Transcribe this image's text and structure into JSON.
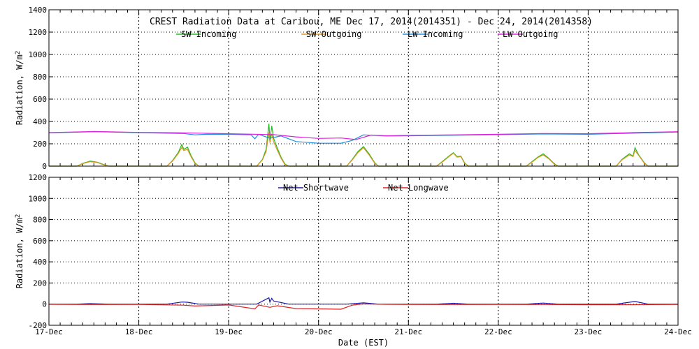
{
  "chart_data": [
    {
      "type": "line",
      "title": "CREST Radiation Data at Caribou, ME   Dec 17, 2014(2014351) - Dec 24, 2014(2014358)",
      "xlabel": "",
      "ylabel": "Radiation, W/m^2",
      "x_range": [
        "2014-12-17",
        "2014-12-24"
      ],
      "ylim": [
        0,
        1400
      ],
      "y_ticks": [
        0,
        200,
        400,
        600,
        800,
        1000,
        1200,
        1400
      ],
      "grid": true,
      "legend_position": "top-center",
      "series": [
        {
          "name": "SW Incoming",
          "color": "#22bb22",
          "points": [
            [
              "2014-12-17 00:00",
              0
            ],
            [
              "2014-12-17 07:30",
              0
            ],
            [
              "2014-12-17 09:00",
              25
            ],
            [
              "2014-12-17 11:00",
              45
            ],
            [
              "2014-12-17 13:00",
              35
            ],
            [
              "2014-12-17 14:30",
              15
            ],
            [
              "2014-12-17 16:00",
              0
            ],
            [
              "2014-12-18 07:30",
              0
            ],
            [
              "2014-12-18 09:00",
              50
            ],
            [
              "2014-12-18 10:30",
              120
            ],
            [
              "2014-12-18 11:30",
              195
            ],
            [
              "2014-12-18 12:00",
              150
            ],
            [
              "2014-12-18 13:00",
              170
            ],
            [
              "2014-12-18 14:00",
              90
            ],
            [
              "2014-12-18 15:00",
              30
            ],
            [
              "2014-12-18 16:00",
              0
            ],
            [
              "2014-12-19 07:30",
              0
            ],
            [
              "2014-12-19 09:00",
              60
            ],
            [
              "2014-12-19 10:00",
              150
            ],
            [
              "2014-12-19 10:45",
              380
            ],
            [
              "2014-12-19 11:00",
              230
            ],
            [
              "2014-12-19 11:30",
              360
            ],
            [
              "2014-12-19 12:00",
              250
            ],
            [
              "2014-12-19 13:00",
              160
            ],
            [
              "2014-12-19 14:00",
              80
            ],
            [
              "2014-12-19 15:00",
              20
            ],
            [
              "2014-12-19 16:00",
              0
            ],
            [
              "2014-12-20 07:30",
              0
            ],
            [
              "2014-12-20 09:00",
              60
            ],
            [
              "2014-12-20 10:30",
              130
            ],
            [
              "2014-12-20 12:00",
              175
            ],
            [
              "2014-12-20 13:30",
              110
            ],
            [
              "2014-12-20 15:00",
              30
            ],
            [
              "2014-12-20 16:00",
              0
            ],
            [
              "2014-12-21 07:30",
              0
            ],
            [
              "2014-12-21 09:00",
              40
            ],
            [
              "2014-12-21 11:00",
              95
            ],
            [
              "2014-12-21 12:00",
              120
            ],
            [
              "2014-12-21 13:00",
              85
            ],
            [
              "2014-12-21 14:00",
              90
            ],
            [
              "2014-12-21 15:00",
              30
            ],
            [
              "2014-12-21 16:00",
              0
            ],
            [
              "2014-12-22 07:30",
              0
            ],
            [
              "2014-12-22 09:00",
              40
            ],
            [
              "2014-12-22 10:30",
              80
            ],
            [
              "2014-12-22 12:00",
              110
            ],
            [
              "2014-12-22 13:30",
              70
            ],
            [
              "2014-12-22 15:00",
              20
            ],
            [
              "2014-12-22 16:00",
              0
            ],
            [
              "2014-12-23 07:30",
              0
            ],
            [
              "2014-12-23 09:00",
              60
            ],
            [
              "2014-12-23 11:00",
              110
            ],
            [
              "2014-12-23 12:00",
              90
            ],
            [
              "2014-12-23 12:30",
              165
            ],
            [
              "2014-12-23 13:30",
              100
            ],
            [
              "2014-12-23 15:00",
              30
            ],
            [
              "2014-12-23 16:00",
              0
            ],
            [
              "2014-12-24 00:00",
              0
            ]
          ]
        },
        {
          "name": "SW Outgoing",
          "color": "#dd9922",
          "points": [
            [
              "2014-12-17 00:00",
              0
            ],
            [
              "2014-12-17 07:30",
              0
            ],
            [
              "2014-12-17 09:00",
              22
            ],
            [
              "2014-12-17 11:00",
              40
            ],
            [
              "2014-12-17 13:00",
              32
            ],
            [
              "2014-12-17 14:30",
              12
            ],
            [
              "2014-12-17 16:00",
              0
            ],
            [
              "2014-12-18 07:30",
              0
            ],
            [
              "2014-12-18 09:00",
              45
            ],
            [
              "2014-12-18 10:30",
              110
            ],
            [
              "2014-12-18 11:30",
              170
            ],
            [
              "2014-12-18 12:00",
              140
            ],
            [
              "2014-12-18 13:00",
              150
            ],
            [
              "2014-12-18 14:00",
              80
            ],
            [
              "2014-12-18 15:00",
              25
            ],
            [
              "2014-12-18 16:00",
              0
            ],
            [
              "2014-12-19 07:30",
              0
            ],
            [
              "2014-12-19 09:00",
              55
            ],
            [
              "2014-12-19 10:00",
              130
            ],
            [
              "2014-12-19 10:45",
              300
            ],
            [
              "2014-12-19 11:00",
              210
            ],
            [
              "2014-12-19 11:30",
              290
            ],
            [
              "2014-12-19 12:00",
              220
            ],
            [
              "2014-12-19 13:00",
              140
            ],
            [
              "2014-12-19 14:00",
              70
            ],
            [
              "2014-12-19 15:00",
              15
            ],
            [
              "2014-12-19 16:00",
              0
            ],
            [
              "2014-12-20 07:30",
              0
            ],
            [
              "2014-12-20 09:00",
              55
            ],
            [
              "2014-12-20 10:30",
              120
            ],
            [
              "2014-12-20 12:00",
              165
            ],
            [
              "2014-12-20 13:30",
              100
            ],
            [
              "2014-12-20 15:00",
              25
            ],
            [
              "2014-12-20 16:00",
              0
            ],
            [
              "2014-12-21 07:30",
              0
            ],
            [
              "2014-12-21 09:00",
              35
            ],
            [
              "2014-12-21 11:00",
              90
            ],
            [
              "2014-12-21 12:00",
              115
            ],
            [
              "2014-12-21 13:00",
              80
            ],
            [
              "2014-12-21 14:00",
              85
            ],
            [
              "2014-12-21 15:00",
              25
            ],
            [
              "2014-12-21 16:00",
              0
            ],
            [
              "2014-12-22 07:30",
              0
            ],
            [
              "2014-12-22 09:00",
              35
            ],
            [
              "2014-12-22 10:30",
              75
            ],
            [
              "2014-12-22 12:00",
              100
            ],
            [
              "2014-12-22 13:30",
              65
            ],
            [
              "2014-12-22 15:00",
              15
            ],
            [
              "2014-12-22 16:00",
              0
            ],
            [
              "2014-12-23 07:30",
              0
            ],
            [
              "2014-12-23 09:00",
              55
            ],
            [
              "2014-12-23 11:00",
              100
            ],
            [
              "2014-12-23 12:00",
              85
            ],
            [
              "2014-12-23 12:30",
              140
            ],
            [
              "2014-12-23 13:30",
              95
            ],
            [
              "2014-12-23 15:00",
              25
            ],
            [
              "2014-12-23 16:00",
              0
            ],
            [
              "2014-12-24 00:00",
              0
            ]
          ]
        },
        {
          "name": "LW Incoming",
          "color": "#1f8fdf",
          "points": [
            [
              "2014-12-17 00:00",
              298
            ],
            [
              "2014-12-17 12:00",
              308
            ],
            [
              "2014-12-18 00:00",
              300
            ],
            [
              "2014-12-18 12:00",
              292
            ],
            [
              "2014-12-18 15:00",
              280
            ],
            [
              "2014-12-18 18:00",
              285
            ],
            [
              "2014-12-19 00:00",
              285
            ],
            [
              "2014-12-19 06:00",
              280
            ],
            [
              "2014-12-19 07:00",
              245
            ],
            [
              "2014-12-19 08:00",
              285
            ],
            [
              "2014-12-19 11:00",
              250
            ],
            [
              "2014-12-19 14:00",
              270
            ],
            [
              "2014-12-19 18:00",
              220
            ],
            [
              "2014-12-20 00:00",
              205
            ],
            [
              "2014-12-20 06:00",
              205
            ],
            [
              "2014-12-20 09:00",
              230
            ],
            [
              "2014-12-20 12:00",
              280
            ],
            [
              "2014-12-20 18:00",
              270
            ],
            [
              "2014-12-21 00:00",
              272
            ],
            [
              "2014-12-21 12:00",
              276
            ],
            [
              "2014-12-22 00:00",
              282
            ],
            [
              "2014-12-22 12:00",
              288
            ],
            [
              "2014-12-23 00:00",
              285
            ],
            [
              "2014-12-23 12:00",
              295
            ],
            [
              "2014-12-24 00:00",
              305
            ]
          ]
        },
        {
          "name": "LW Outgoing",
          "color": "#dd22dd",
          "points": [
            [
              "2014-12-17 00:00",
              300
            ],
            [
              "2014-12-17 12:00",
              310
            ],
            [
              "2014-12-18 00:00",
              302
            ],
            [
              "2014-12-18 12:00",
              298
            ],
            [
              "2014-12-19 00:00",
              290
            ],
            [
              "2014-12-19 12:00",
              282
            ],
            [
              "2014-12-19 18:00",
              262
            ],
            [
              "2014-12-20 00:00",
              248
            ],
            [
              "2014-12-20 06:00",
              252
            ],
            [
              "2014-12-20 10:00",
              238
            ],
            [
              "2014-12-20 14:00",
              278
            ],
            [
              "2014-12-20 18:00",
              272
            ],
            [
              "2014-12-21 00:00",
              275
            ],
            [
              "2014-12-21 12:00",
              280
            ],
            [
              "2014-12-22 00:00",
              285
            ],
            [
              "2014-12-22 12:00",
              292
            ],
            [
              "2014-12-23 00:00",
              290
            ],
            [
              "2014-12-23 12:00",
              300
            ],
            [
              "2014-12-24 00:00",
              308
            ]
          ]
        }
      ]
    },
    {
      "type": "line",
      "title": "",
      "xlabel": "Date (EST)",
      "ylabel": "Radiation, W/m^2",
      "x_range": [
        "2014-12-17",
        "2014-12-24"
      ],
      "x_tick_labels": [
        "17-Dec",
        "18-Dec",
        "19-Dec",
        "20-Dec",
        "21-Dec",
        "22-Dec",
        "23-Dec",
        "24-Dec"
      ],
      "ylim": [
        -200,
        1200
      ],
      "y_ticks": [
        -200,
        0,
        200,
        400,
        600,
        800,
        1000,
        1200
      ],
      "grid": true,
      "legend_position": "top-center",
      "series": [
        {
          "name": "Net Shortwave",
          "color": "#1a1aaa",
          "points": [
            [
              "2014-12-17 00:00",
              0
            ],
            [
              "2014-12-17 07:30",
              0
            ],
            [
              "2014-12-17 11:00",
              5
            ],
            [
              "2014-12-17 16:00",
              0
            ],
            [
              "2014-12-18 07:30",
              0
            ],
            [
              "2014-12-18 11:30",
              20
            ],
            [
              "2014-12-18 13:00",
              18
            ],
            [
              "2014-12-18 16:00",
              0
            ],
            [
              "2014-12-19 07:30",
              0
            ],
            [
              "2014-12-19 10:45",
              60
            ],
            [
              "2014-12-19 11:00",
              20
            ],
            [
              "2014-12-19 11:30",
              55
            ],
            [
              "2014-12-19 12:00",
              30
            ],
            [
              "2014-12-19 16:00",
              0
            ],
            [
              "2014-12-20 07:30",
              0
            ],
            [
              "2014-12-20 12:00",
              12
            ],
            [
              "2014-12-20 16:00",
              0
            ],
            [
              "2014-12-21 07:30",
              0
            ],
            [
              "2014-12-21 12:00",
              8
            ],
            [
              "2014-12-21 16:00",
              0
            ],
            [
              "2014-12-22 07:30",
              0
            ],
            [
              "2014-12-22 12:00",
              10
            ],
            [
              "2014-12-22 16:00",
              0
            ],
            [
              "2014-12-23 07:30",
              0
            ],
            [
              "2014-12-23 12:30",
              25
            ],
            [
              "2014-12-23 16:00",
              0
            ],
            [
              "2014-12-24 00:00",
              0
            ]
          ]
        },
        {
          "name": "Net Longwave",
          "color": "#dd2222",
          "points": [
            [
              "2014-12-17 00:00",
              -2
            ],
            [
              "2014-12-17 12:00",
              -4
            ],
            [
              "2014-12-18 00:00",
              -3
            ],
            [
              "2014-12-18 12:00",
              -10
            ],
            [
              "2014-12-18 15:00",
              -18
            ],
            [
              "2014-12-19 00:00",
              -8
            ],
            [
              "2014-12-19 07:00",
              -45
            ],
            [
              "2014-12-19 08:00",
              -8
            ],
            [
              "2014-12-19 11:00",
              -30
            ],
            [
              "2014-12-19 13:00",
              -15
            ],
            [
              "2014-12-19 18:00",
              -42
            ],
            [
              "2014-12-20 00:00",
              -45
            ],
            [
              "2014-12-20 06:00",
              -48
            ],
            [
              "2014-12-20 09:00",
              -10
            ],
            [
              "2014-12-20 12:00",
              2
            ],
            [
              "2014-12-20 18:00",
              -2
            ],
            [
              "2014-12-21 00:00",
              -3
            ],
            [
              "2014-12-21 12:00",
              -4
            ],
            [
              "2014-12-22 00:00",
              -3
            ],
            [
              "2014-12-22 12:00",
              -4
            ],
            [
              "2014-12-23 00:00",
              -5
            ],
            [
              "2014-12-23 12:00",
              -5
            ],
            [
              "2014-12-24 00:00",
              -3
            ]
          ]
        }
      ]
    }
  ]
}
